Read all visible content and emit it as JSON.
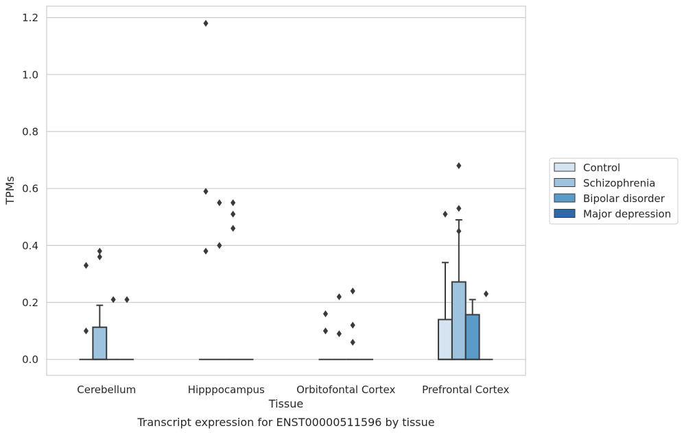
{
  "chart_data": {
    "type": "box",
    "caption": "Transcript expression for ENST00000511596 by tissue",
    "xlabel": "Tissue",
    "ylabel": "TPMs",
    "ylim": [
      -0.056,
      1.24
    ],
    "yticks": [
      "0.0",
      "0.2",
      "0.4",
      "0.6",
      "0.8",
      "1.0",
      "1.2"
    ],
    "ytick_values": [
      0.0,
      0.2,
      0.4,
      0.6,
      0.8,
      1.0,
      1.2
    ],
    "grid": true,
    "legend_position": "right",
    "categories": [
      "Cerebellum",
      "Hipppocampus",
      "Orbitofontal Cortex",
      "Prefrontal Cortex"
    ],
    "series": [
      {
        "name": "Control",
        "color": "#d6e4f2",
        "boxes": [
          {
            "q1": 0,
            "median": 0,
            "q3": 0,
            "whislo": 0,
            "whishi": 0,
            "fliers": [
              0.33,
              0.1
            ]
          },
          {
            "q1": 0,
            "median": 0,
            "q3": 0,
            "whislo": 0,
            "whishi": 0,
            "fliers": [
              1.18,
              0.59,
              0.38
            ]
          },
          {
            "q1": 0,
            "median": 0,
            "q3": 0,
            "whislo": 0,
            "whishi": 0,
            "fliers": [
              0.16,
              0.1
            ]
          },
          {
            "q1": 0,
            "median": 0,
            "q3": 0.14,
            "whislo": 0,
            "whishi": 0.34,
            "fliers": [
              0.51
            ]
          }
        ]
      },
      {
        "name": "Schizophrenia",
        "color": "#9dc3de",
        "boxes": [
          {
            "q1": 0,
            "median": 0,
            "q3": 0.113,
            "whislo": 0,
            "whishi": 0.19,
            "fliers": [
              0.38,
              0.36
            ]
          },
          {
            "q1": 0,
            "median": 0,
            "q3": 0,
            "whislo": 0,
            "whishi": 0,
            "fliers": [
              0.55,
              0.4
            ]
          },
          {
            "q1": 0,
            "median": 0,
            "q3": 0,
            "whislo": 0,
            "whishi": 0,
            "fliers": [
              0.22,
              0.09
            ]
          },
          {
            "q1": 0,
            "median": 0,
            "q3": 0.272,
            "whislo": 0,
            "whishi": 0.49,
            "fliers": [
              0.68,
              0.53,
              0.45
            ]
          }
        ]
      },
      {
        "name": "Bipolar disorder",
        "color": "#5a9bc8",
        "boxes": [
          {
            "q1": 0,
            "median": 0,
            "q3": 0,
            "whislo": 0,
            "whishi": 0,
            "fliers": [
              0.21
            ]
          },
          {
            "q1": 0,
            "median": 0,
            "q3": 0,
            "whislo": 0,
            "whishi": 0,
            "fliers": [
              0.55,
              0.51,
              0.46
            ]
          },
          {
            "q1": 0,
            "median": 0,
            "q3": 0,
            "whislo": 0,
            "whishi": 0,
            "fliers": [
              0.24,
              0.12,
              0.06
            ]
          },
          {
            "q1": 0,
            "median": 0,
            "q3": 0.157,
            "whislo": 0,
            "whishi": 0.21,
            "fliers": []
          }
        ]
      },
      {
        "name": "Major depression",
        "color": "#2c6ba8",
        "boxes": [
          {
            "q1": 0,
            "median": 0,
            "q3": 0,
            "whislo": 0,
            "whishi": 0,
            "fliers": [
              0.21
            ]
          },
          {
            "q1": 0,
            "median": 0,
            "q3": 0,
            "whislo": 0,
            "whishi": 0,
            "fliers": []
          },
          {
            "q1": 0,
            "median": 0,
            "q3": 0,
            "whislo": 0,
            "whishi": 0,
            "fliers": []
          },
          {
            "q1": 0,
            "median": 0,
            "q3": 0,
            "whislo": 0,
            "whishi": 0,
            "fliers": [
              0.23
            ]
          }
        ]
      }
    ]
  }
}
